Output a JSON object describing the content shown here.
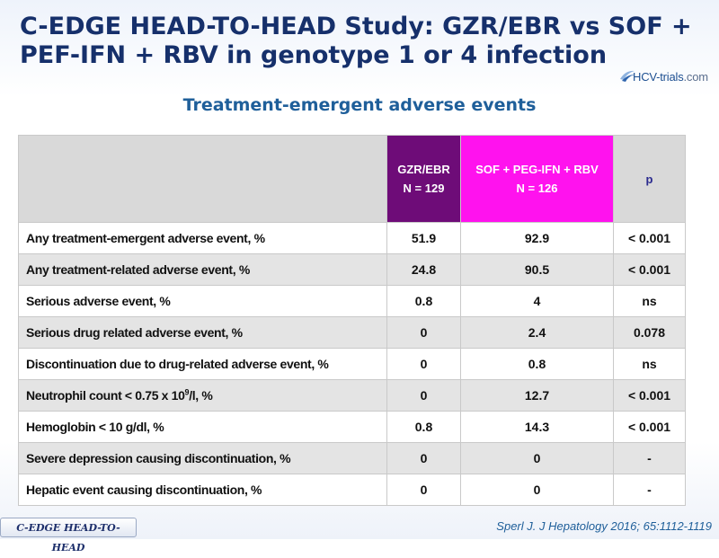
{
  "slide": {
    "title": "C-EDGE HEAD-TO-HEAD Study: GZR/EBR vs SOF + PEF-IFN + RBV in genotype 1 or 4 infection",
    "logo": {
      "brand": "HCV-trials",
      "domain": ".com",
      "icon": "swoosh-icon"
    },
    "subtitle": "Treatment-emergent adverse events"
  },
  "table": {
    "headers": {
      "gzr": {
        "line1": "GZR/EBR",
        "line2": "N = 129"
      },
      "sof": {
        "line1": "SOF + PEG-IFN + RBV",
        "line2": "N = 126"
      },
      "p": "p"
    },
    "rows": [
      {
        "label": "Any treatment-emergent adverse event, %",
        "gzr": "51.9",
        "sof": "92.9",
        "p": "< 0.001"
      },
      {
        "label": "Any treatment-related adverse event, %",
        "gzr": "24.8",
        "sof": "90.5",
        "p": "< 0.001"
      },
      {
        "label": "Serious adverse event, %",
        "gzr": "0.8",
        "sof": "4",
        "p": "ns"
      },
      {
        "label": "Serious drug related adverse event, %",
        "gzr": "0",
        "sof": "2.4",
        "p": "0.078"
      },
      {
        "label": "Discontinuation due to drug-related adverse event, %",
        "gzr": "0",
        "sof": "0.8",
        "p": "ns"
      },
      {
        "label_pre": "Neutrophil count < 0.75 x 10",
        "label_sup": "9",
        "label_post": "/l, %",
        "gzr": "0",
        "sof": "12.7",
        "p": "< 0.001"
      },
      {
        "label": "Hemoglobin < 10 g/dl, %",
        "gzr": "0.8",
        "sof": "14.3",
        "p": "< 0.001"
      },
      {
        "label": "Severe depression causing discontinuation, %",
        "gzr": "0",
        "sof": "0",
        "p": "-"
      },
      {
        "label": "Hepatic event causing discontinuation, %",
        "gzr": "0",
        "sof": "0",
        "p": "-"
      }
    ]
  },
  "footer": {
    "tab": "C-EDGE HEAD-TO-HEAD",
    "reference": "Sperl J. J Hepatology 2016; 65:1112-1119"
  },
  "colors": {
    "title": "#16306b",
    "subtitle": "#1f5f9a",
    "gzr_header": "#6e0c78",
    "sof_header": "#ff12ee",
    "header_grey": "#d9d9d9",
    "row_alt": "#e4e4e4"
  }
}
